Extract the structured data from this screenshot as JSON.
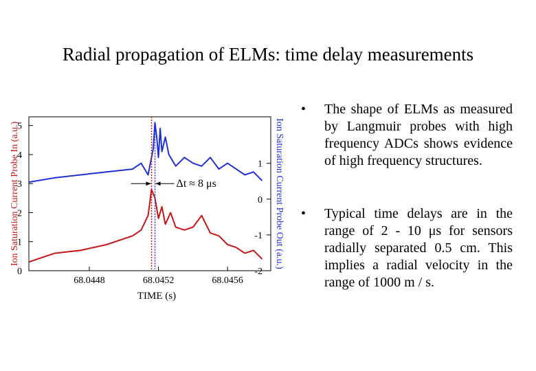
{
  "slide": {
    "title": "Radial propagation of ELMs: time delay measurements",
    "bullet_marker": "•",
    "bullets": [
      "The shape of ELMs as measured by Langmuir probes with high frequency ADCs shows evidence of high frequency structures.",
      "Typical time delays are in the range of 2 - 10 μs for sensors radially separated 0.5 cm. This implies a radial velocity in the range of 1000 m / s."
    ]
  },
  "chart_data": {
    "type": "line",
    "xlabel": "TIME (s)",
    "ylabel_left": "Ion Saturation Current Probe In  (a.u.)",
    "ylabel_right": "Ion Saturation Current Probe Out (a.u.)",
    "xlim": [
      68.04445,
      68.04585
    ],
    "ylim_left": [
      0,
      5.3
    ],
    "ylim_right": [
      -2,
      2.3
    ],
    "xticks": [
      68.0448,
      68.0452,
      68.0456
    ],
    "xtick_labels": [
      "68.0448",
      "68.0452",
      "68.0456"
    ],
    "yticks_left": [
      0,
      1,
      2,
      3,
      4,
      5
    ],
    "yticks_left_labels": [
      "0",
      "1",
      "2",
      "3",
      "4",
      "5"
    ],
    "yticks_right": [
      -2,
      -1,
      0,
      1
    ],
    "yticks_right_labels": [
      "-2",
      "-1",
      "0",
      "1"
    ],
    "annotation": {
      "text": "Δt ≈ 8 μs",
      "x_start": 68.04516,
      "x_end": 68.04518,
      "y": 3
    },
    "series": [
      {
        "axis": "left",
        "color": "#1f2fd6",
        "x": [
          68.04445,
          68.0446,
          68.04475,
          68.0449,
          68.04505,
          68.0451,
          68.04514,
          68.04517,
          68.04518,
          68.04519,
          68.0452,
          68.04521,
          68.04522,
          68.04524,
          68.04526,
          68.04528,
          68.0453,
          68.04535,
          68.0454,
          68.04545,
          68.0455,
          68.04555,
          68.0456,
          68.04565,
          68.0457,
          68.04575,
          68.0458
        ],
        "y": [
          3.05,
          3.2,
          3.3,
          3.4,
          3.5,
          3.7,
          3.3,
          4.2,
          5.1,
          4.6,
          3.9,
          4.9,
          4.1,
          4.6,
          4.0,
          3.8,
          3.6,
          3.9,
          3.7,
          3.6,
          3.9,
          3.5,
          3.7,
          3.5,
          3.3,
          3.4,
          3.1
        ]
      },
      {
        "axis": "left",
        "color": "#c81414",
        "x": [
          68.04445,
          68.0446,
          68.04475,
          68.0449,
          68.04505,
          68.0451,
          68.04514,
          68.04516,
          68.04518,
          68.0452,
          68.04522,
          68.04524,
          68.04527,
          68.0453,
          68.04535,
          68.0454,
          68.04545,
          68.0455,
          68.04555,
          68.0456,
          68.04565,
          68.0457,
          68.04575,
          68.0458
        ],
        "y": [
          0.3,
          0.6,
          0.7,
          0.9,
          1.2,
          1.4,
          1.9,
          2.8,
          2.5,
          1.8,
          2.2,
          1.6,
          2.0,
          1.5,
          1.4,
          1.5,
          1.9,
          1.3,
          1.2,
          0.9,
          0.8,
          0.6,
          0.7,
          0.4
        ]
      }
    ]
  }
}
